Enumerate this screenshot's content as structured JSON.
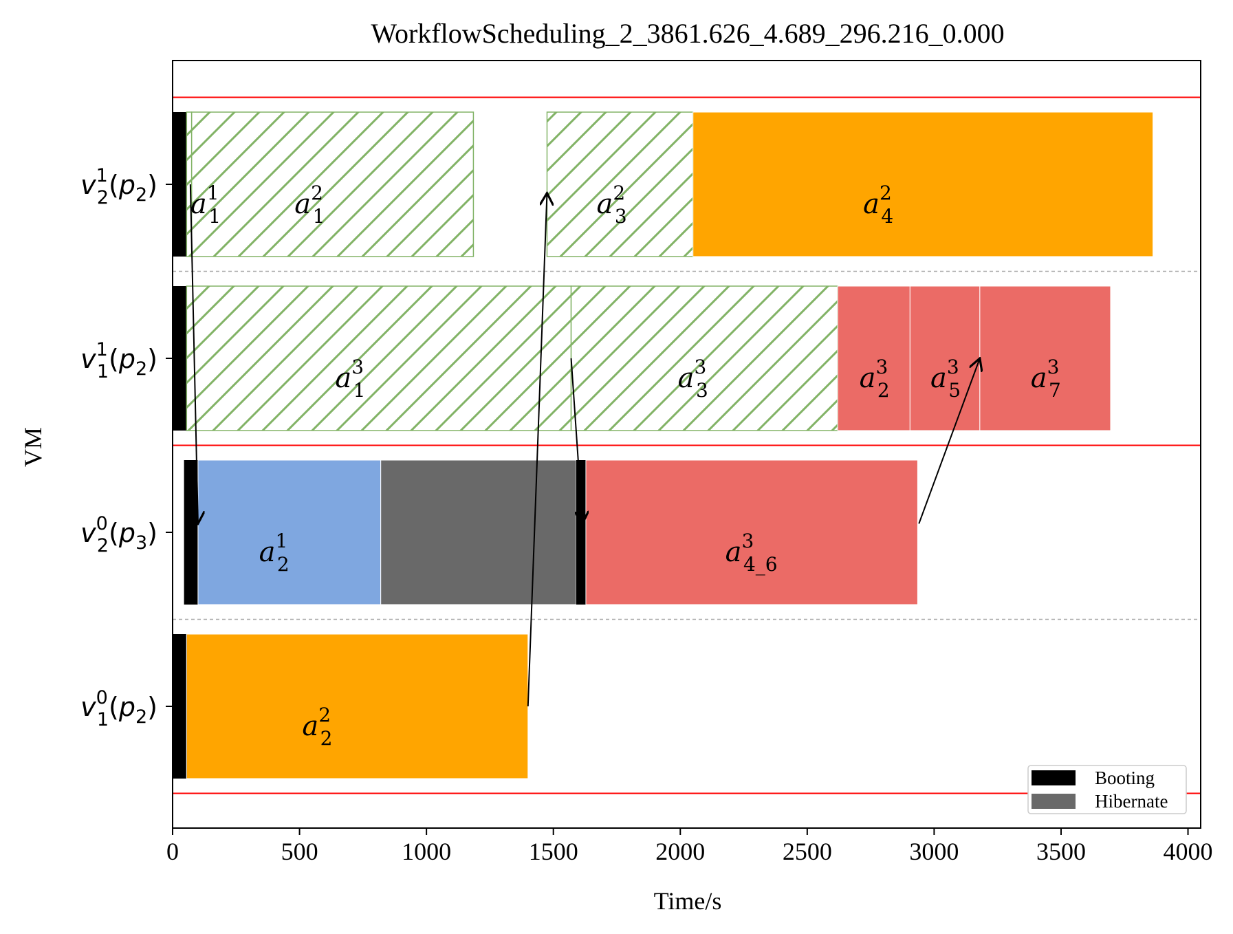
{
  "chart_data": {
    "type": "gantt",
    "title": "WorkflowScheduling_2_3861.626_4.689_296.216_0.000",
    "xlabel": "Time/s",
    "ylabel": "VM",
    "xlim": [
      0,
      4050
    ],
    "xticks": [
      0,
      500,
      1000,
      1500,
      2000,
      2500,
      3000,
      3500,
      4000
    ],
    "grid": false,
    "legend": {
      "placement": "lower-right",
      "items": [
        {
          "label": "Booting",
          "color": "#000000"
        },
        {
          "label": "Hibernate",
          "color": "#696969"
        }
      ]
    },
    "vms": [
      {
        "id": "v2p2",
        "base": "v",
        "sub": "2",
        "sup": "1",
        "p": "p",
        "psub": "2"
      },
      {
        "id": "v1p2",
        "base": "v",
        "sub": "1",
        "sup": "1",
        "p": "p",
        "psub": "2"
      },
      {
        "id": "v2p3",
        "base": "v",
        "sub": "2",
        "sup": "0",
        "p": "p",
        "psub": "3"
      },
      {
        "id": "v1p2b",
        "base": "v",
        "sub": "1",
        "sup": "0",
        "p": "p",
        "psub": "2"
      }
    ],
    "separators": {
      "solid": [
        0.5,
        2.5,
        4.5
      ],
      "dashed": [
        1.5,
        3.5
      ]
    },
    "bars": [
      {
        "vm": 0,
        "start": 0,
        "end": 55,
        "kind": "booting",
        "color": "#000000"
      },
      {
        "vm": 0,
        "start": 55,
        "end": 75,
        "kind": "hatched",
        "label": {
          "base": "a",
          "sub": "1",
          "sup": "1"
        },
        "label_x": 130
      },
      {
        "vm": 0,
        "start": 75,
        "end": 1185,
        "kind": "hatched",
        "label": {
          "base": "a",
          "sub": "1",
          "sup": "2"
        },
        "label_x": 540
      },
      {
        "vm": 0,
        "start": 1475,
        "end": 2050,
        "kind": "hatched",
        "label": {
          "base": "a",
          "sub": "3",
          "sup": "2"
        },
        "label_x": 1730
      },
      {
        "vm": 0,
        "start": 2050,
        "end": 3862,
        "kind": "solid",
        "color": "#FFA500",
        "label": {
          "base": "a",
          "sub": "4",
          "sup": "2"
        },
        "label_x": 2780
      },
      {
        "vm": 1,
        "start": 0,
        "end": 55,
        "kind": "booting",
        "color": "#000000"
      },
      {
        "vm": 1,
        "start": 55,
        "end": 1570,
        "kind": "hatched",
        "label": {
          "base": "a",
          "sub": "1",
          "sup": "3"
        },
        "label_x": 700
      },
      {
        "vm": 1,
        "start": 1570,
        "end": 2620,
        "kind": "hatched",
        "label": {
          "base": "a",
          "sub": "3",
          "sup": "3"
        },
        "label_x": 2050
      },
      {
        "vm": 1,
        "start": 2620,
        "end": 2905,
        "kind": "solid",
        "color": "#EB6B66",
        "label": {
          "base": "a",
          "sub": "2",
          "sup": "3"
        },
        "label_x": 2765
      },
      {
        "vm": 1,
        "start": 2905,
        "end": 3180,
        "kind": "solid",
        "color": "#EB6B66",
        "label": {
          "base": "a",
          "sub": "5",
          "sup": "3"
        },
        "label_x": 3045
      },
      {
        "vm": 1,
        "start": 3180,
        "end": 3695,
        "kind": "solid",
        "color": "#EB6B66",
        "label": {
          "base": "a",
          "sub": "7",
          "sup": "3"
        },
        "label_x": 3440
      },
      {
        "vm": 2,
        "start": 45,
        "end": 100,
        "kind": "booting",
        "color": "#000000"
      },
      {
        "vm": 2,
        "start": 100,
        "end": 820,
        "kind": "solid",
        "color": "#7FA7E0",
        "label": {
          "base": "a",
          "sub": "2",
          "sup": "1"
        },
        "label_x": 400
      },
      {
        "vm": 2,
        "start": 820,
        "end": 1590,
        "kind": "hibernate",
        "color": "#696969"
      },
      {
        "vm": 2,
        "start": 1590,
        "end": 1628,
        "kind": "booting",
        "color": "#000000"
      },
      {
        "vm": 2,
        "start": 1628,
        "end": 2935,
        "kind": "solid",
        "color": "#EB6B66",
        "label": {
          "base": "a",
          "sub": "4_6",
          "sup": "3"
        },
        "label_x": 2280
      },
      {
        "vm": 3,
        "start": 0,
        "end": 55,
        "kind": "booting",
        "color": "#000000"
      },
      {
        "vm": 3,
        "start": 55,
        "end": 1400,
        "kind": "solid",
        "color": "#FFA500",
        "label": {
          "base": "a",
          "sub": "2",
          "sup": "2"
        },
        "label_x": 570
      }
    ],
    "arrows": [
      {
        "x1": 70,
        "y1": 0.0,
        "x2": 100,
        "y2": 1.95
      },
      {
        "x1": 1400,
        "y1": 3.0,
        "x2": 1475,
        "y2": 0.05
      },
      {
        "x1": 1570,
        "y1": 1.0,
        "x2": 1615,
        "y2": 1.95
      },
      {
        "x1": 2940,
        "y1": 1.95,
        "x2": 3180,
        "y2": 1.0
      }
    ],
    "colors": {
      "hatch_stroke": "#82B366",
      "hatch_border": "#82B366",
      "separator_solid": "#FF0000",
      "separator_dashed": "#AAAAAA",
      "axis": "#000000"
    }
  }
}
